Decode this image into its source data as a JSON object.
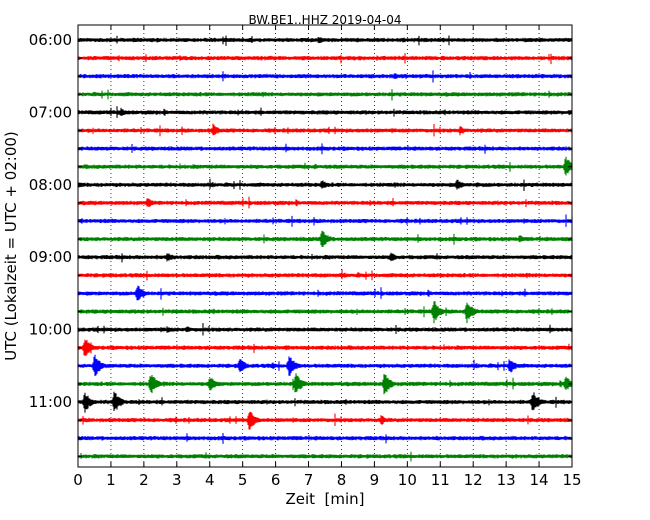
{
  "chart_data": {
    "type": "line",
    "title": "BW.BE1..HHZ 2019-04-04",
    "xlabel": "Zeit  [min]",
    "ylabel": "UTC (Lokalzeit = UTC + 02:00)",
    "xlim": [
      0,
      15
    ],
    "x_ticks": [
      0,
      1,
      2,
      3,
      4,
      5,
      6,
      7,
      8,
      9,
      10,
      11,
      12,
      13,
      14,
      15
    ],
    "x_tick_labels": [
      "0",
      "1",
      "2",
      "3",
      "4",
      "5",
      "6",
      "7",
      "8",
      "9",
      "10",
      "11",
      "12",
      "13",
      "14",
      "15"
    ],
    "y_tick_labels": [
      "06:00",
      "07:00",
      "08:00",
      "09:00",
      "10:00",
      "11:00"
    ],
    "trace_interval_min": 15,
    "trace_count": 24,
    "first_trace_start": "06:00",
    "grid": "vertical dotted",
    "series_colors": [
      "#000000",
      "#ff0000",
      "#0000ff",
      "#008000"
    ],
    "traces": [
      {
        "start": "06:00",
        "color": "#000000",
        "events": [
          {
            "t": 7.3,
            "amp": 0.35
          },
          {
            "t": 10.5,
            "amp": 0.2
          },
          {
            "t": 15.0,
            "amp": 0.2
          }
        ]
      },
      {
        "start": "06:15",
        "color": "#ff0000",
        "events": [
          {
            "t": 3.1,
            "amp": 0.25
          },
          {
            "t": 8.2,
            "amp": 0.25
          }
        ]
      },
      {
        "start": "06:30",
        "color": "#0000ff",
        "events": [
          {
            "t": 9.6,
            "amp": 0.3
          },
          {
            "t": 10.2,
            "amp": 0.15
          }
        ]
      },
      {
        "start": "06:45",
        "color": "#008000",
        "events": [
          {
            "t": 5.3,
            "amp": 0.2
          },
          {
            "t": 13.0,
            "amp": 0.15
          }
        ]
      },
      {
        "start": "07:00",
        "color": "#000000",
        "events": [
          {
            "t": 1.3,
            "amp": 0.4
          },
          {
            "t": 7.4,
            "amp": 0.2
          },
          {
            "t": 14.9,
            "amp": 0.25
          }
        ]
      },
      {
        "start": "07:15",
        "color": "#ff0000",
        "events": [
          {
            "t": 4.1,
            "amp": 0.55
          },
          {
            "t": 11.6,
            "amp": 0.4
          },
          {
            "t": 8.9,
            "amp": 0.2
          }
        ]
      },
      {
        "start": "07:30",
        "color": "#0000ff",
        "events": [
          {
            "t": 6.0,
            "amp": 0.2
          },
          {
            "t": 10.4,
            "amp": 0.15
          }
        ]
      },
      {
        "start": "07:45",
        "color": "#008000",
        "events": [
          {
            "t": 14.8,
            "amp": 0.9
          },
          {
            "t": 7.2,
            "amp": 0.25
          }
        ]
      },
      {
        "start": "08:00",
        "color": "#000000",
        "events": [
          {
            "t": 0.0,
            "amp": 0.3
          },
          {
            "t": 7.4,
            "amp": 0.45
          },
          {
            "t": 11.5,
            "amp": 0.5
          },
          {
            "t": 12.1,
            "amp": 0.25
          }
        ]
      },
      {
        "start": "08:15",
        "color": "#ff0000",
        "events": [
          {
            "t": 2.1,
            "amp": 0.45
          },
          {
            "t": 14.4,
            "amp": 0.2
          }
        ]
      },
      {
        "start": "08:30",
        "color": "#0000ff",
        "events": [
          {
            "t": 10.0,
            "amp": 0.2
          }
        ]
      },
      {
        "start": "08:45",
        "color": "#008000",
        "events": [
          {
            "t": 7.4,
            "amp": 0.9
          },
          {
            "t": 13.4,
            "amp": 0.35
          },
          {
            "t": 14.8,
            "amp": 0.25
          }
        ]
      },
      {
        "start": "09:00",
        "color": "#000000",
        "events": [
          {
            "t": 2.7,
            "amp": 0.45
          },
          {
            "t": 9.5,
            "amp": 0.45
          }
        ]
      },
      {
        "start": "09:15",
        "color": "#ff0000",
        "events": [
          {
            "t": 8.5,
            "amp": 0.25
          },
          {
            "t": 9.8,
            "amp": 0.2
          }
        ]
      },
      {
        "start": "09:30",
        "color": "#0000ff",
        "events": [
          {
            "t": 1.8,
            "amp": 0.8
          }
        ]
      },
      {
        "start": "09:45",
        "color": "#008000",
        "events": [
          {
            "t": 10.8,
            "amp": 1.0
          },
          {
            "t": 11.8,
            "amp": 1.0
          },
          {
            "t": 8.3,
            "amp": 0.2
          }
        ]
      },
      {
        "start": "10:00",
        "color": "#000000",
        "events": [
          {
            "t": 2.7,
            "amp": 0.3
          },
          {
            "t": 3.3,
            "amp": 0.3
          }
        ]
      },
      {
        "start": "10:15",
        "color": "#ff0000",
        "events": [
          {
            "t": 0.2,
            "amp": 0.9
          },
          {
            "t": 6.3,
            "amp": 0.25
          }
        ]
      },
      {
        "start": "10:30",
        "color": "#0000ff",
        "events": [
          {
            "t": 0.5,
            "amp": 1.0
          },
          {
            "t": 4.9,
            "amp": 0.7
          },
          {
            "t": 6.4,
            "amp": 1.0
          },
          {
            "t": 13.1,
            "amp": 0.7
          },
          {
            "t": 5.9,
            "amp": 0.3
          }
        ]
      },
      {
        "start": "10:45",
        "color": "#008000",
        "events": [
          {
            "t": 2.2,
            "amp": 1.0
          },
          {
            "t": 4.0,
            "amp": 0.7
          },
          {
            "t": 6.6,
            "amp": 1.0
          },
          {
            "t": 9.3,
            "amp": 1.0
          },
          {
            "t": 14.8,
            "amp": 0.7
          }
        ]
      },
      {
        "start": "11:00",
        "color": "#000000",
        "events": [
          {
            "t": 0.2,
            "amp": 0.9
          },
          {
            "t": 1.1,
            "amp": 1.0
          },
          {
            "t": 13.8,
            "amp": 1.0
          }
        ]
      },
      {
        "start": "11:15",
        "color": "#ff0000",
        "events": [
          {
            "t": 5.2,
            "amp": 1.0
          },
          {
            "t": 9.2,
            "amp": 0.45
          }
        ]
      },
      {
        "start": "11:30",
        "color": "#0000ff",
        "events": [
          {
            "t": 10.9,
            "amp": 0.2
          },
          {
            "t": 14.1,
            "amp": 0.2
          }
        ]
      },
      {
        "start": "11:45",
        "color": "#008000",
        "events": [
          {
            "t": 2.8,
            "amp": 0.2
          },
          {
            "t": 6.5,
            "amp": 0.15
          }
        ]
      }
    ]
  }
}
